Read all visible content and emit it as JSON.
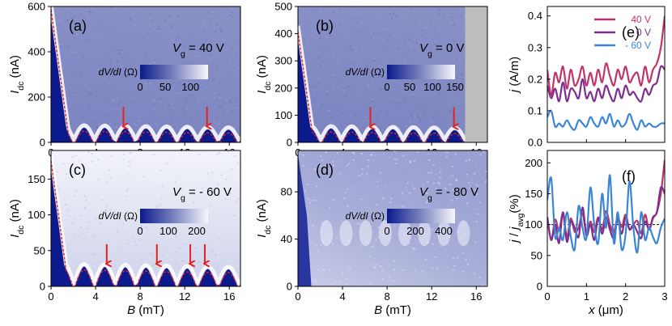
{
  "colors": {
    "dark": "#0b1a8c",
    "mid": "#6f78b8",
    "light": "#f4f4fb",
    "red": "#e32222",
    "gray": "#bdbdbd",
    "c40": "#c2336a",
    "c0": "#7d2e8e",
    "cm60": "#3a86d6"
  },
  "chart_data": [
    {
      "id": "a",
      "type": "heatmap",
      "label": "(a)",
      "gate": "V",
      "gate_sub": "g",
      "gate_text": " = 40 V",
      "xlim": [
        0,
        17
      ],
      "ylim": [
        0,
        600
      ],
      "xticks": [
        "0",
        "4",
        "8",
        "12",
        "16"
      ],
      "xtick_values": [
        0,
        4,
        8,
        12,
        16
      ],
      "yticks": [
        "0",
        "200",
        "400",
        "600"
      ],
      "ytick_values": [
        0,
        200,
        400,
        600
      ],
      "ylabel_main": "I",
      "ylabel_sub": "dc",
      "ylabel_unit": " (nA)",
      "xlabel": "",
      "colorbar": {
        "label_main": "dV/dI",
        "label_unit": " (Ω)",
        "ticks": [
          "0",
          "50",
          "100"
        ],
        "tick_values": [
          0,
          50,
          100
        ],
        "max": 135
      },
      "arrows_x": [
        6.5,
        14.0
      ],
      "arrow_y": 50,
      "envelope": "Fraunhofer-like critical current, lobes ~70 nA",
      "gray_from": null
    },
    {
      "id": "b",
      "type": "heatmap",
      "label": "(b)",
      "gate": "V",
      "gate_sub": "g",
      "gate_text": " = 0 V",
      "xlim": [
        0,
        17
      ],
      "ylim": [
        0,
        500
      ],
      "xticks": [
        "0",
        "4",
        "8",
        "12",
        "16"
      ],
      "xtick_values": [
        0,
        4,
        8,
        12,
        16
      ],
      "yticks": [
        "0",
        "100",
        "200",
        "300",
        "400",
        "500"
      ],
      "ytick_values": [
        0,
        100,
        200,
        300,
        400,
        500
      ],
      "ylabel_main": "I",
      "ylabel_sub": "dc",
      "ylabel_unit": " (nA)",
      "xlabel": "",
      "colorbar": {
        "label_main": "dV/dI",
        "label_unit": " (Ω)",
        "ticks": [
          "0",
          "50",
          "100",
          "150"
        ],
        "tick_values": [
          0,
          50,
          100,
          150
        ],
        "max": 150
      },
      "arrows_x": [
        6.5,
        14.0
      ],
      "arrow_y": 40,
      "gray_from": 15
    },
    {
      "id": "c",
      "type": "heatmap",
      "label": "(c)",
      "gate": "V",
      "gate_sub": "g",
      "gate_text": " = - 60 V",
      "xlim": [
        0,
        17
      ],
      "ylim": [
        0,
        190
      ],
      "xticks": [
        "0",
        "4",
        "8",
        "12",
        "16"
      ],
      "xtick_values": [
        0,
        4,
        8,
        12,
        16
      ],
      "yticks": [
        "0",
        "50",
        "100",
        "150"
      ],
      "ytick_values": [
        0,
        50,
        100,
        150
      ],
      "ylabel_main": "I",
      "ylabel_sub": "dc",
      "ylabel_unit": " (nA)",
      "xlabel_main": "B",
      "xlabel_unit": " (mT)",
      "colorbar": {
        "label_main": "dV/dI",
        "label_unit": " (Ω)",
        "ticks": [
          "0",
          "100",
          "200"
        ],
        "tick_values": [
          0,
          100,
          200
        ],
        "max": 240
      },
      "arrows_x": [
        5.0,
        9.5,
        12.5,
        13.8
      ],
      "arrow_y": 25,
      "gray_from": null
    },
    {
      "id": "d",
      "type": "heatmap",
      "label": "(d)",
      "gate": "V",
      "gate_sub": "g",
      "gate_text": " = - 80 V",
      "xlim": [
        0,
        17
      ],
      "ylim": [
        0,
        115
      ],
      "xticks": [
        "0",
        "4",
        "8",
        "12",
        "16"
      ],
      "xtick_values": [
        0,
        4,
        8,
        12,
        16
      ],
      "yticks": [
        "0",
        "40",
        "80"
      ],
      "ytick_values": [
        0,
        40,
        80
      ],
      "ylabel_main": "I",
      "ylabel_sub": "dc",
      "ylabel_unit": " (nA)",
      "xlabel_main": "B",
      "xlabel_unit": " (mT)",
      "colorbar": {
        "label_main": "dV/dI",
        "label_unit": " (Ω)",
        "ticks": [
          "0",
          "200",
          "400"
        ],
        "tick_values": [
          0,
          200,
          400
        ],
        "max": 480
      },
      "arrows_x": [],
      "arrow_y": 0,
      "gray_from": null
    },
    {
      "id": "e",
      "type": "line",
      "label": "(e)",
      "xlim": [
        0,
        3
      ],
      "ylim": [
        0,
        0.43
      ],
      "xticks": [],
      "xtick_values": [
        0,
        1,
        2,
        3
      ],
      "yticks": [
        "0.0",
        "0.1",
        "0.2",
        "0.3",
        "0.4"
      ],
      "ytick_values": [
        0,
        0.1,
        0.2,
        0.3,
        0.4
      ],
      "ylabel_main": "j",
      "ylabel_unit": " (A/m)",
      "series": [
        {
          "name": "40 V",
          "color": "#c2336a",
          "x": [
            0,
            0.1,
            0.2,
            0.3,
            0.4,
            0.5,
            0.6,
            0.7,
            0.8,
            0.9,
            1.0,
            1.1,
            1.2,
            1.3,
            1.4,
            1.5,
            1.6,
            1.7,
            1.8,
            1.9,
            2.0,
            2.1,
            2.2,
            2.3,
            2.4,
            2.5,
            2.6,
            2.7,
            2.8,
            2.9,
            3.0
          ],
          "values": [
            0.23,
            0.15,
            0.22,
            0.19,
            0.24,
            0.17,
            0.23,
            0.18,
            0.2,
            0.24,
            0.18,
            0.22,
            0.18,
            0.23,
            0.19,
            0.25,
            0.21,
            0.18,
            0.23,
            0.2,
            0.24,
            0.19,
            0.21,
            0.22,
            0.18,
            0.24,
            0.19,
            0.23,
            0.25,
            0.3,
            0.4
          ]
        },
        {
          "name": "0 V",
          "color": "#7d2e8e",
          "x": [
            0,
            0.1,
            0.2,
            0.3,
            0.4,
            0.5,
            0.6,
            0.7,
            0.8,
            0.9,
            1.0,
            1.1,
            1.2,
            1.3,
            1.4,
            1.5,
            1.6,
            1.7,
            1.8,
            1.9,
            2.0,
            2.1,
            2.2,
            2.3,
            2.4,
            2.5,
            2.6,
            2.7,
            2.8,
            2.9,
            3.0
          ],
          "values": [
            0.18,
            0.14,
            0.17,
            0.13,
            0.19,
            0.13,
            0.17,
            0.16,
            0.14,
            0.2,
            0.14,
            0.16,
            0.13,
            0.17,
            0.14,
            0.18,
            0.15,
            0.13,
            0.17,
            0.14,
            0.18,
            0.15,
            0.16,
            0.14,
            0.13,
            0.17,
            0.15,
            0.18,
            0.19,
            0.24,
            0.23
          ]
        },
        {
          "name": "- 60 V",
          "color": "#3a86d6",
          "x": [
            0,
            0.1,
            0.2,
            0.3,
            0.4,
            0.5,
            0.6,
            0.7,
            0.8,
            0.9,
            1.0,
            1.1,
            1.2,
            1.3,
            1.4,
            1.5,
            1.6,
            1.7,
            1.8,
            1.9,
            2.0,
            2.1,
            2.2,
            2.3,
            2.4,
            2.5,
            2.6,
            2.7,
            2.8,
            2.9,
            3.0
          ],
          "values": [
            0.08,
            0.1,
            0.05,
            0.06,
            0.05,
            0.07,
            0.05,
            0.04,
            0.07,
            0.06,
            0.05,
            0.08,
            0.06,
            0.05,
            0.08,
            0.06,
            0.09,
            0.05,
            0.07,
            0.05,
            0.06,
            0.09,
            0.06,
            0.04,
            0.07,
            0.05,
            0.06,
            0.05,
            0.05,
            0.06,
            0.06
          ]
        }
      ]
    },
    {
      "id": "f",
      "type": "line",
      "label": "(f)",
      "xlim": [
        0,
        3
      ],
      "ylim": [
        0,
        220
      ],
      "xticks": [
        "0",
        "1",
        "2",
        "3"
      ],
      "xtick_values": [
        0,
        1,
        2,
        3
      ],
      "yticks": [
        "0",
        "50",
        "100",
        "150",
        "200"
      ],
      "ytick_values": [
        0,
        50,
        100,
        150,
        200
      ],
      "ylabel_main": "j",
      "ylabel_mid": " / ",
      "ylabel_j2": "j",
      "ylabel_sub": "avg",
      "ylabel_unit": "(%)",
      "xlabel_main": "x",
      "xlabel_unit": " (μm)",
      "reference_line": 100,
      "series": [
        {
          "name": "40 V",
          "color": "#c2336a",
          "x": [
            0,
            0.1,
            0.2,
            0.3,
            0.4,
            0.5,
            0.6,
            0.7,
            0.8,
            0.9,
            1.0,
            1.1,
            1.2,
            1.3,
            1.4,
            1.5,
            1.6,
            1.7,
            1.8,
            1.9,
            2.0,
            2.1,
            2.2,
            2.3,
            2.4,
            2.5,
            2.6,
            2.7,
            2.8,
            2.9,
            3.0
          ],
          "values": [
            112,
            75,
            108,
            90,
            118,
            80,
            110,
            88,
            95,
            118,
            85,
            105,
            88,
            112,
            92,
            122,
            100,
            88,
            112,
            96,
            116,
            92,
            100,
            106,
            86,
            116,
            92,
            110,
            120,
            150,
            205
          ]
        },
        {
          "name": "0 V",
          "color": "#7d2e8e",
          "x": [
            0,
            0.1,
            0.2,
            0.3,
            0.4,
            0.5,
            0.6,
            0.7,
            0.8,
            0.9,
            1.0,
            1.1,
            1.2,
            1.3,
            1.4,
            1.5,
            1.6,
            1.7,
            1.8,
            1.9,
            2.0,
            2.1,
            2.2,
            2.3,
            2.4,
            2.5,
            2.6,
            2.7,
            2.8,
            2.9,
            3.0
          ],
          "values": [
            112,
            75,
            100,
            70,
            120,
            72,
            105,
            95,
            80,
            128,
            82,
            100,
            75,
            110,
            85,
            112,
            92,
            78,
            108,
            85,
            112,
            92,
            100,
            88,
            78,
            105,
            92,
            112,
            120,
            160,
            150
          ]
        },
        {
          "name": "- 60 V",
          "color": "#3a86d6",
          "x": [
            0,
            0.1,
            0.2,
            0.3,
            0.4,
            0.5,
            0.6,
            0.7,
            0.8,
            0.9,
            1.0,
            1.1,
            1.2,
            1.3,
            1.4,
            1.5,
            1.6,
            1.7,
            1.8,
            1.9,
            2.0,
            2.1,
            2.2,
            2.3,
            2.4,
            2.5,
            2.6,
            2.7,
            2.8,
            2.9,
            3.0
          ],
          "values": [
            140,
            175,
            80,
            95,
            75,
            120,
            80,
            60,
            130,
            95,
            78,
            160,
            100,
            70,
            150,
            95,
            180,
            70,
            120,
            60,
            85,
            170,
            95,
            55,
            120,
            75,
            95,
            80,
            70,
            95,
            110
          ]
        }
      ]
    }
  ]
}
